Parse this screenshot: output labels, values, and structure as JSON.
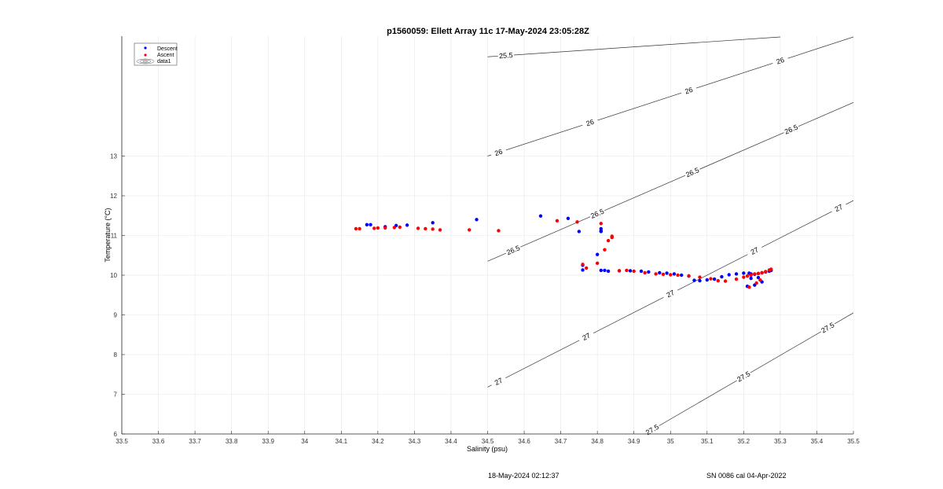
{
  "chart_data": {
    "type": "scatter",
    "title": "p1560059: Ellett Array 11c 17-May-2024 23:05:28Z",
    "xlabel": "Salinity (psu)",
    "ylabel": "Temperature (°C)",
    "xlim": [
      33.5,
      35.5
    ],
    "ylim": [
      6,
      16
    ],
    "xticks": [
      "33.5",
      "33.6",
      "33.7",
      "33.8",
      "33.9",
      "34",
      "34.1",
      "34.2",
      "34.3",
      "34.4",
      "34.5",
      "34.6",
      "34.7",
      "34.8",
      "34.9",
      "35",
      "35.1",
      "35.2",
      "35.3",
      "35.4",
      "35.5"
    ],
    "yticks": [
      "6",
      "7",
      "8",
      "9",
      "10",
      "11",
      "12",
      "13"
    ],
    "grid": true,
    "legend_position": "top-left",
    "legend": [
      "Descent",
      "Ascent",
      "data1"
    ],
    "series": [
      {
        "name": "Descent",
        "color": "#0000ff",
        "x": [
          34.17,
          34.18,
          34.22,
          34.25,
          34.28,
          34.35,
          34.47,
          34.645,
          34.72,
          34.75,
          34.76,
          34.76,
          34.8,
          34.81,
          34.81,
          34.81,
          34.82,
          34.81,
          34.83,
          34.86,
          34.89,
          34.92,
          34.94,
          34.97,
          34.99,
          35.01,
          35.03,
          35.05,
          35.065,
          35.08,
          35.1,
          35.12,
          35.14,
          35.16,
          35.18,
          35.2,
          35.215,
          35.22,
          35.23,
          35.24,
          35.25,
          35.26,
          35.27,
          35.275,
          35.21,
          35.23,
          35.25,
          35.22,
          35.24
        ],
        "y": [
          11.27,
          11.27,
          11.22,
          11.25,
          11.26,
          11.32,
          11.4,
          11.49,
          11.43,
          11.1,
          10.25,
          10.13,
          10.52,
          11.1,
          11.12,
          11.17,
          10.12,
          10.12,
          10.1,
          10.11,
          10.11,
          10.1,
          10.08,
          10.06,
          10.05,
          10.03,
          10.0,
          9.98,
          9.87,
          9.86,
          9.88,
          9.9,
          9.96,
          10.01,
          10.03,
          10.05,
          10.05,
          10.03,
          10.02,
          10.04,
          10.06,
          10.08,
          10.1,
          10.12,
          9.72,
          9.75,
          9.83,
          9.92,
          9.94
        ]
      },
      {
        "name": "Ascent",
        "color": "#ff0000",
        "x": [
          34.14,
          34.15,
          34.19,
          34.2,
          34.22,
          34.245,
          34.26,
          34.31,
          34.33,
          34.35,
          34.37,
          34.45,
          34.53,
          34.69,
          34.745,
          34.76,
          34.77,
          34.8,
          34.81,
          34.82,
          34.83,
          34.84,
          34.84,
          34.86,
          34.88,
          34.9,
          34.93,
          34.96,
          34.98,
          35.0,
          35.02,
          35.05,
          35.08,
          35.11,
          35.13,
          35.15,
          35.18,
          35.2,
          35.21,
          35.22,
          35.23,
          35.24,
          35.25,
          35.26,
          35.27,
          35.275,
          35.215,
          35.235,
          35.245
        ],
        "y": [
          11.17,
          11.17,
          11.18,
          11.19,
          11.19,
          11.2,
          11.21,
          11.18,
          11.17,
          11.16,
          11.14,
          11.14,
          11.12,
          11.37,
          11.34,
          10.27,
          10.18,
          10.3,
          11.3,
          10.64,
          10.87,
          10.95,
          10.98,
          10.11,
          10.12,
          10.1,
          10.06,
          10.03,
          10.02,
          10.01,
          10.0,
          9.98,
          9.95,
          9.91,
          9.86,
          9.85,
          9.9,
          9.95,
          9.98,
          10.0,
          10.03,
          10.04,
          10.06,
          10.09,
          10.13,
          10.15,
          9.7,
          9.8,
          9.88
        ]
      }
    ],
    "contours": [
      {
        "label": "25.5",
        "points": [
          [
            34.5,
            15.5
          ],
          [
            35.3,
            16.0
          ]
        ],
        "labels_at": [
          34.55
        ]
      },
      {
        "label": "26",
        "points": [
          [
            34.5,
            13.0
          ],
          [
            35.5,
            16.0
          ]
        ],
        "labels_at": [
          34.53,
          34.78,
          35.05,
          35.3
        ]
      },
      {
        "label": "26.5",
        "points": [
          [
            34.5,
            10.35
          ],
          [
            35.5,
            14.35
          ]
        ],
        "labels_at": [
          34.57,
          34.8,
          35.06,
          35.33
        ]
      },
      {
        "label": "27",
        "points": [
          [
            34.5,
            7.18
          ],
          [
            35.5,
            11.88
          ]
        ],
        "labels_at": [
          34.53,
          34.77,
          35.0,
          35.23,
          35.46
        ]
      },
      {
        "label": "27.5",
        "points": [
          [
            34.93,
            6.0
          ],
          [
            35.5,
            9.05
          ]
        ],
        "labels_at": [
          34.95,
          35.2,
          35.43
        ]
      }
    ]
  },
  "footer": {
    "date": "18-May-2024 02:12:37",
    "serial": "SN 0086 cal 04-Apr-2022"
  }
}
